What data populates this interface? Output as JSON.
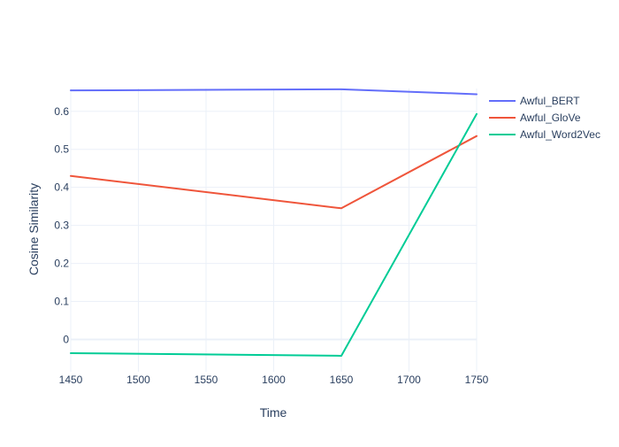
{
  "chart_data": {
    "type": "line",
    "title": "",
    "xlabel": "Time",
    "ylabel": "Cosine Similarity",
    "x": [
      1450,
      1650,
      1750
    ],
    "xlim": [
      1450,
      1750
    ],
    "ylim": [
      -0.085,
      0.66
    ],
    "x_ticks": [
      1450,
      1500,
      1550,
      1600,
      1650,
      1700,
      1750
    ],
    "y_ticks": [
      0,
      0.1,
      0.2,
      0.3,
      0.4,
      0.5,
      0.6
    ],
    "grid": true,
    "legend_position": "top-right",
    "series": [
      {
        "name": "Awful_BERT",
        "color": "#636efa",
        "values": [
          0.655,
          0.658,
          0.645
        ]
      },
      {
        "name": "Awful_GloVe",
        "color": "#ef553b",
        "values": [
          0.43,
          0.345,
          0.535
        ]
      },
      {
        "name": "Awful_Word2Vec",
        "color": "#00cc96",
        "values": [
          -0.036,
          -0.043,
          0.593
        ]
      }
    ]
  }
}
